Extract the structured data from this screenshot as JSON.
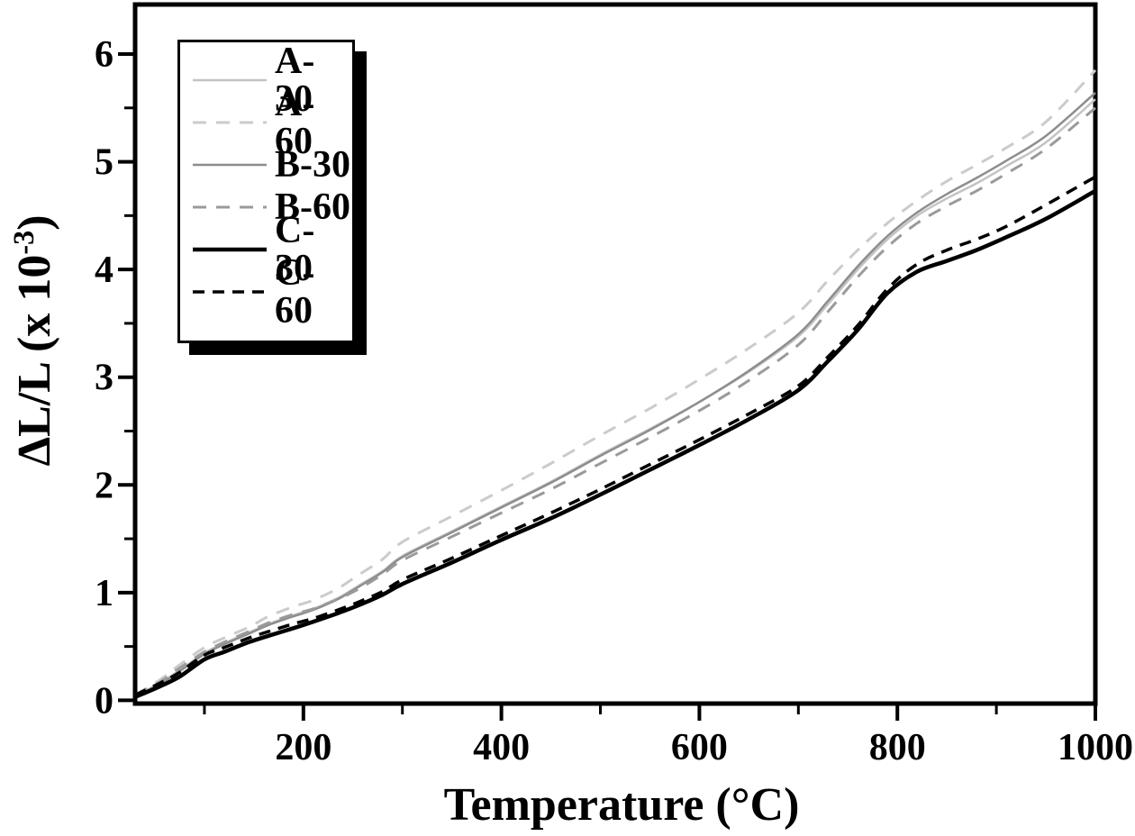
{
  "figure": {
    "background": "#ffffff",
    "frame_color": "#000000",
    "text_color": "#000000"
  },
  "chart_data": {
    "type": "line",
    "title": "",
    "xlabel": "Temperature (°C)",
    "ylabel": "ΔL/L (x 10⁻³)",
    "ylabel_parts": {
      "base": "ΔL/L (x 10",
      "superscript": "-3",
      "close": ")"
    },
    "xlim": [
      30,
      1000
    ],
    "ylim": [
      -0.03,
      6.46
    ],
    "x_ticks_major": [
      200,
      400,
      600,
      800,
      1000
    ],
    "x_ticks_minor": [
      100,
      300,
      500,
      700,
      900
    ],
    "y_ticks_major": [
      0,
      1,
      2,
      3,
      4,
      5,
      6
    ],
    "y_ticks_minor": [
      0.5,
      1.5,
      2.5,
      3.5,
      4.5,
      5.5
    ],
    "grid": false,
    "legend_position": "top-left",
    "x": [
      30,
      55,
      75,
      100,
      120,
      145,
      165,
      190,
      210,
      235,
      255,
      280,
      300,
      350,
      400,
      450,
      500,
      550,
      600,
      650,
      700,
      730,
      760,
      790,
      820,
      850,
      880,
      910,
      950,
      1000
    ],
    "series": [
      {
        "name": "A-30",
        "color": "#c3c3c3",
        "style": "solid",
        "width": 2.5,
        "values": [
          0.04,
          0.16,
          0.28,
          0.44,
          0.53,
          0.63,
          0.71,
          0.79,
          0.85,
          0.95,
          1.06,
          1.2,
          1.34,
          1.57,
          1.8,
          2.03,
          2.28,
          2.52,
          2.77,
          3.05,
          3.38,
          3.68,
          4.0,
          4.28,
          4.5,
          4.66,
          4.8,
          4.96,
          5.18,
          5.58
        ]
      },
      {
        "name": "A-60",
        "color": "#cbcbcb",
        "style": "dashed",
        "width": 3,
        "values": [
          0.05,
          0.19,
          0.33,
          0.49,
          0.58,
          0.68,
          0.78,
          0.87,
          0.93,
          1.04,
          1.16,
          1.31,
          1.47,
          1.71,
          1.95,
          2.2,
          2.46,
          2.71,
          2.98,
          3.27,
          3.6,
          3.9,
          4.18,
          4.43,
          4.64,
          4.82,
          4.97,
          5.13,
          5.37,
          5.85
        ]
      },
      {
        "name": "B-30",
        "color": "#8d8d8d",
        "style": "solid",
        "width": 2.5,
        "values": [
          0.04,
          0.15,
          0.27,
          0.43,
          0.52,
          0.62,
          0.7,
          0.78,
          0.84,
          0.94,
          1.05,
          1.19,
          1.33,
          1.56,
          1.79,
          2.02,
          2.27,
          2.51,
          2.77,
          3.06,
          3.4,
          3.71,
          4.03,
          4.31,
          4.53,
          4.7,
          4.85,
          5.01,
          5.24,
          5.64
        ]
      },
      {
        "name": "B-60",
        "color": "#9a9a9a",
        "style": "dashed",
        "width": 3,
        "values": [
          0.05,
          0.17,
          0.3,
          0.45,
          0.54,
          0.64,
          0.72,
          0.8,
          0.85,
          0.94,
          1.03,
          1.17,
          1.3,
          1.52,
          1.74,
          1.96,
          2.2,
          2.44,
          2.69,
          2.97,
          3.3,
          3.61,
          3.93,
          4.21,
          4.43,
          4.59,
          4.73,
          4.89,
          5.12,
          5.5
        ]
      },
      {
        "name": "C-30",
        "color": "#000000",
        "style": "solid",
        "width": 4.5,
        "values": [
          0.03,
          0.13,
          0.22,
          0.38,
          0.45,
          0.54,
          0.6,
          0.67,
          0.73,
          0.81,
          0.88,
          0.98,
          1.08,
          1.28,
          1.49,
          1.69,
          1.91,
          2.14,
          2.37,
          2.61,
          2.88,
          3.15,
          3.44,
          3.78,
          3.98,
          4.08,
          4.18,
          4.3,
          4.47,
          4.73
        ]
      },
      {
        "name": "C-60",
        "color": "#000000",
        "style": "dashed",
        "width": 3.5,
        "values": [
          0.05,
          0.16,
          0.26,
          0.42,
          0.49,
          0.58,
          0.64,
          0.71,
          0.76,
          0.84,
          0.91,
          1.01,
          1.12,
          1.32,
          1.53,
          1.74,
          1.96,
          2.19,
          2.42,
          2.66,
          2.92,
          3.19,
          3.48,
          3.82,
          4.05,
          4.18,
          4.28,
          4.4,
          4.6,
          4.86
        ]
      }
    ]
  }
}
